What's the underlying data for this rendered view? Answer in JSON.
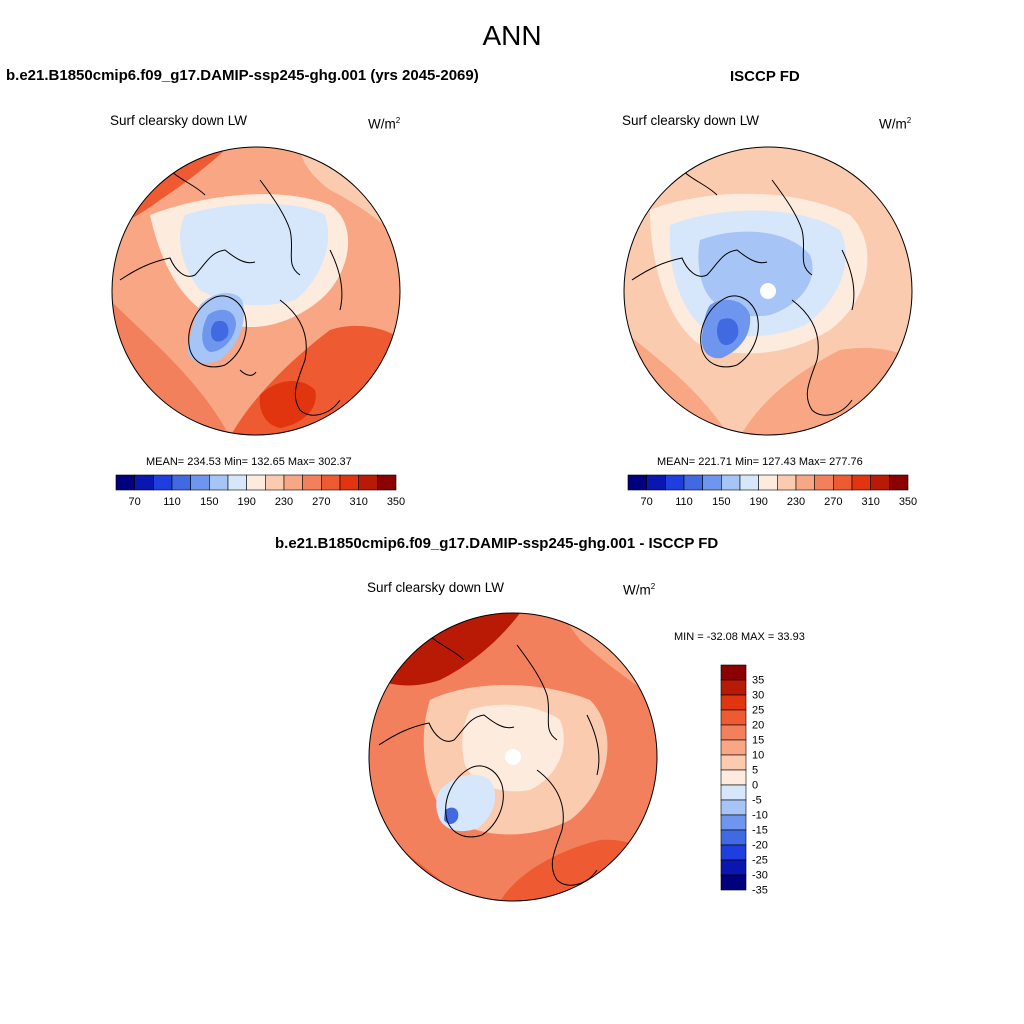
{
  "figure": {
    "title": "ANN"
  },
  "panels": {
    "test": {
      "title": "b.e21.B1850cmip6.f09_g17.DAMIP-ssp245-ghg.001 (yrs 2045-2069)",
      "variable": "Surf clearsky down LW",
      "units_base": "W/m",
      "units_exp": "2",
      "stats": "MEAN= 234.53  Min= 132.65  Max= 302.37",
      "colorbar_ticks": [
        "70",
        "110",
        "150",
        "190",
        "230",
        "270",
        "310",
        "350"
      ]
    },
    "obs": {
      "title": "ISCCP FD",
      "variable": "Surf clearsky down LW",
      "units_base": "W/m",
      "units_exp": "2",
      "stats": "MEAN= 221.71  Min= 127.43  Max= 277.76",
      "colorbar_ticks": [
        "70",
        "110",
        "150",
        "190",
        "230",
        "270",
        "310",
        "350"
      ]
    },
    "diff": {
      "title": "b.e21.B1850cmip6.f09_g17.DAMIP-ssp245-ghg.001 - ISCCP FD",
      "variable": "Surf clearsky down LW",
      "units_base": "W/m",
      "units_exp": "2",
      "stats": "MIN = -32.08 MAX =  33.93",
      "colorbar_ticks": [
        "35",
        "30",
        "25",
        "20",
        "15",
        "10",
        "5",
        "0",
        "-5",
        "-10",
        "-15",
        "-20",
        "-25",
        "-30",
        "-35"
      ]
    }
  },
  "colors": {
    "field_levels": [
      "#00007f",
      "#0a16b0",
      "#1e3ee0",
      "#4169e1",
      "#6f96ee",
      "#a6c4f5",
      "#d6e6fb",
      "#fdebdd",
      "#fbcbb0",
      "#f8a684",
      "#f3805c",
      "#ee5a32",
      "#e0350f",
      "#b81a05",
      "#8b0000"
    ],
    "diff_levels_top_to_bottom": [
      "#8b0000",
      "#b81a05",
      "#e0350f",
      "#ee5a32",
      "#f3805c",
      "#f8a684",
      "#fbcbb0",
      "#fdebdd",
      "#d6e6fb",
      "#a6c4f5",
      "#6f96ee",
      "#4169e1",
      "#1e3ee0",
      "#0a16b0",
      "#00007f"
    ],
    "missing": "#ffffff",
    "coastline": "#000000"
  }
}
